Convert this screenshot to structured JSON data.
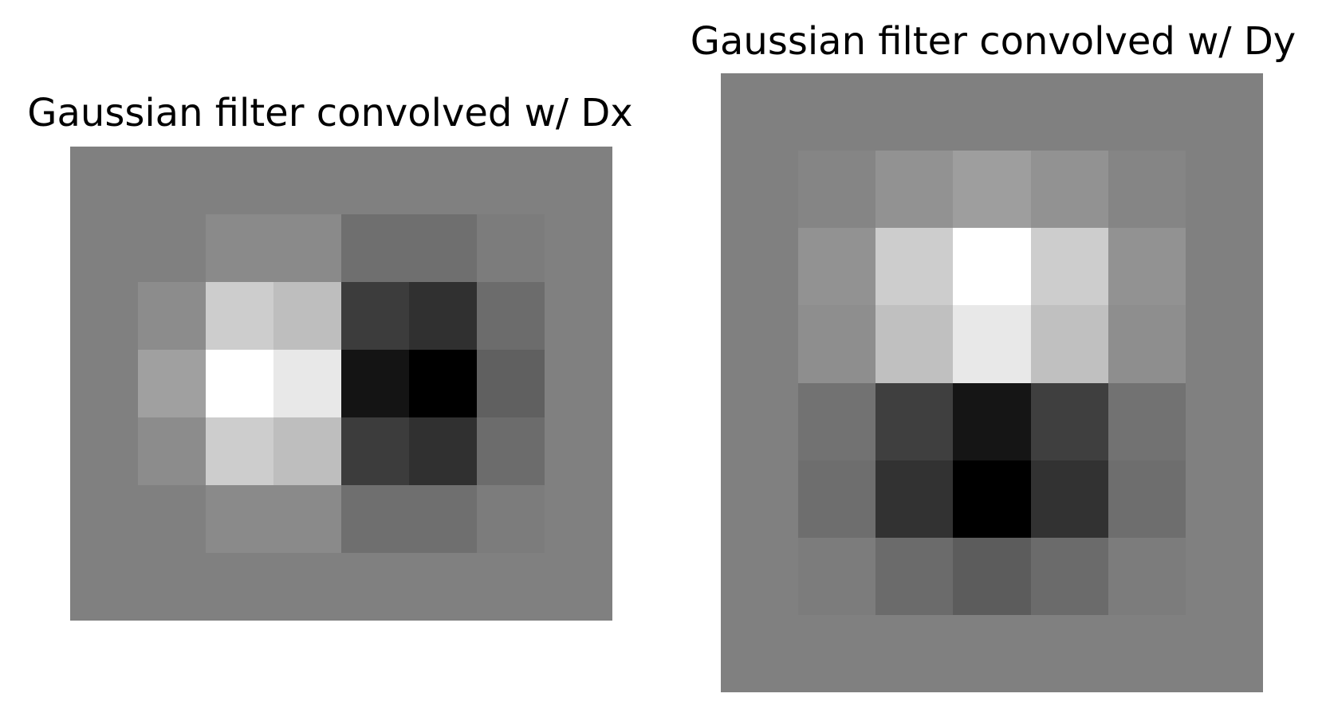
{
  "chart_data": [
    {
      "type": "heatmap",
      "title": "Gaussian filter convolved w/ Dx",
      "colormap": "gray",
      "rows": 7,
      "cols": 8,
      "values": [
        [
          128,
          128,
          128,
          128,
          128,
          128,
          128,
          128
        ],
        [
          128,
          128,
          138,
          138,
          111,
          111,
          124,
          128
        ],
        [
          128,
          140,
          205,
          190,
          60,
          48,
          108,
          128
        ],
        [
          128,
          160,
          255,
          232,
          20,
          0,
          96,
          128
        ],
        [
          128,
          140,
          205,
          190,
          60,
          48,
          108,
          128
        ],
        [
          128,
          128,
          138,
          138,
          111,
          111,
          124,
          128
        ],
        [
          128,
          128,
          128,
          128,
          128,
          128,
          128,
          128
        ]
      ]
    },
    {
      "type": "heatmap",
      "title": "Gaussian filter convolved w/ Dy",
      "colormap": "gray",
      "rows": 8,
      "cols": 7,
      "values": [
        [
          128,
          128,
          128,
          128,
          128,
          128,
          128
        ],
        [
          128,
          133,
          146,
          158,
          146,
          133,
          128
        ],
        [
          128,
          146,
          205,
          255,
          205,
          146,
          128
        ],
        [
          128,
          142,
          192,
          232,
          192,
          142,
          128
        ],
        [
          128,
          114,
          63,
          21,
          63,
          114,
          128
        ],
        [
          128,
          110,
          50,
          0,
          50,
          110,
          128
        ],
        [
          128,
          124,
          107,
          92,
          107,
          124,
          128
        ],
        [
          128,
          128,
          128,
          128,
          128,
          128,
          128
        ]
      ]
    }
  ]
}
